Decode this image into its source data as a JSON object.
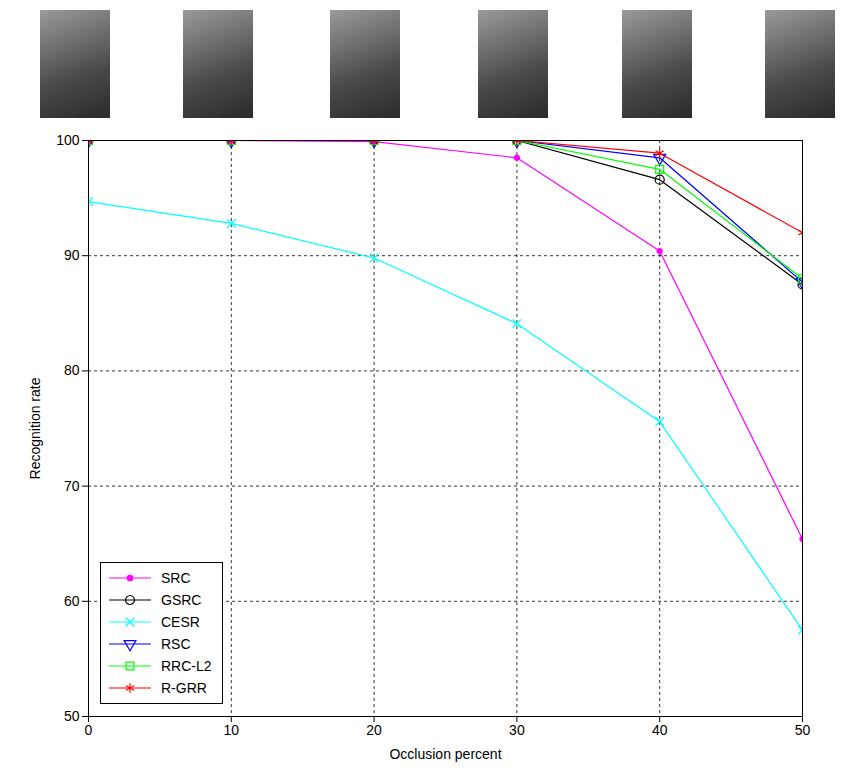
{
  "chart_data": {
    "type": "line",
    "x_label": "Occlusion percent",
    "y_label": "Recognition rate",
    "x": [
      0,
      10,
      20,
      30,
      40,
      50
    ],
    "series": [
      {
        "name": "SRC",
        "color": "#ff00ff",
        "marker": "point",
        "values": [
          100,
          100,
          99.9,
          98.5,
          90.4,
          65.4
        ]
      },
      {
        "name": "GSRC",
        "color": "#000000",
        "marker": "circle",
        "values": [
          100,
          100,
          100,
          100,
          96.6,
          87.5
        ]
      },
      {
        "name": "CESR",
        "color": "#00ffff",
        "marker": "x",
        "values": [
          94.7,
          92.8,
          89.8,
          84.1,
          75.6,
          57.5
        ]
      },
      {
        "name": "RSC",
        "color": "#0000ff",
        "marker": "triangle-down",
        "values": [
          100,
          100,
          100,
          100,
          98.5,
          87.7
        ]
      },
      {
        "name": "RRC-L2",
        "color": "#00ff00",
        "marker": "square",
        "values": [
          100,
          100,
          100,
          100,
          97.5,
          88.0
        ]
      },
      {
        "name": "R-GRR",
        "color": "#ff0000",
        "marker": "asterisk",
        "values": [
          100,
          100,
          100,
          100,
          98.9,
          92.0
        ]
      }
    ],
    "xlim": [
      0,
      50
    ],
    "xticks": [
      0,
      10,
      20,
      30,
      40,
      50
    ],
    "ylim": [
      50,
      100
    ],
    "yticks": [
      50,
      60,
      70,
      80,
      90,
      100
    ],
    "grid": true,
    "legend": "lower left"
  }
}
